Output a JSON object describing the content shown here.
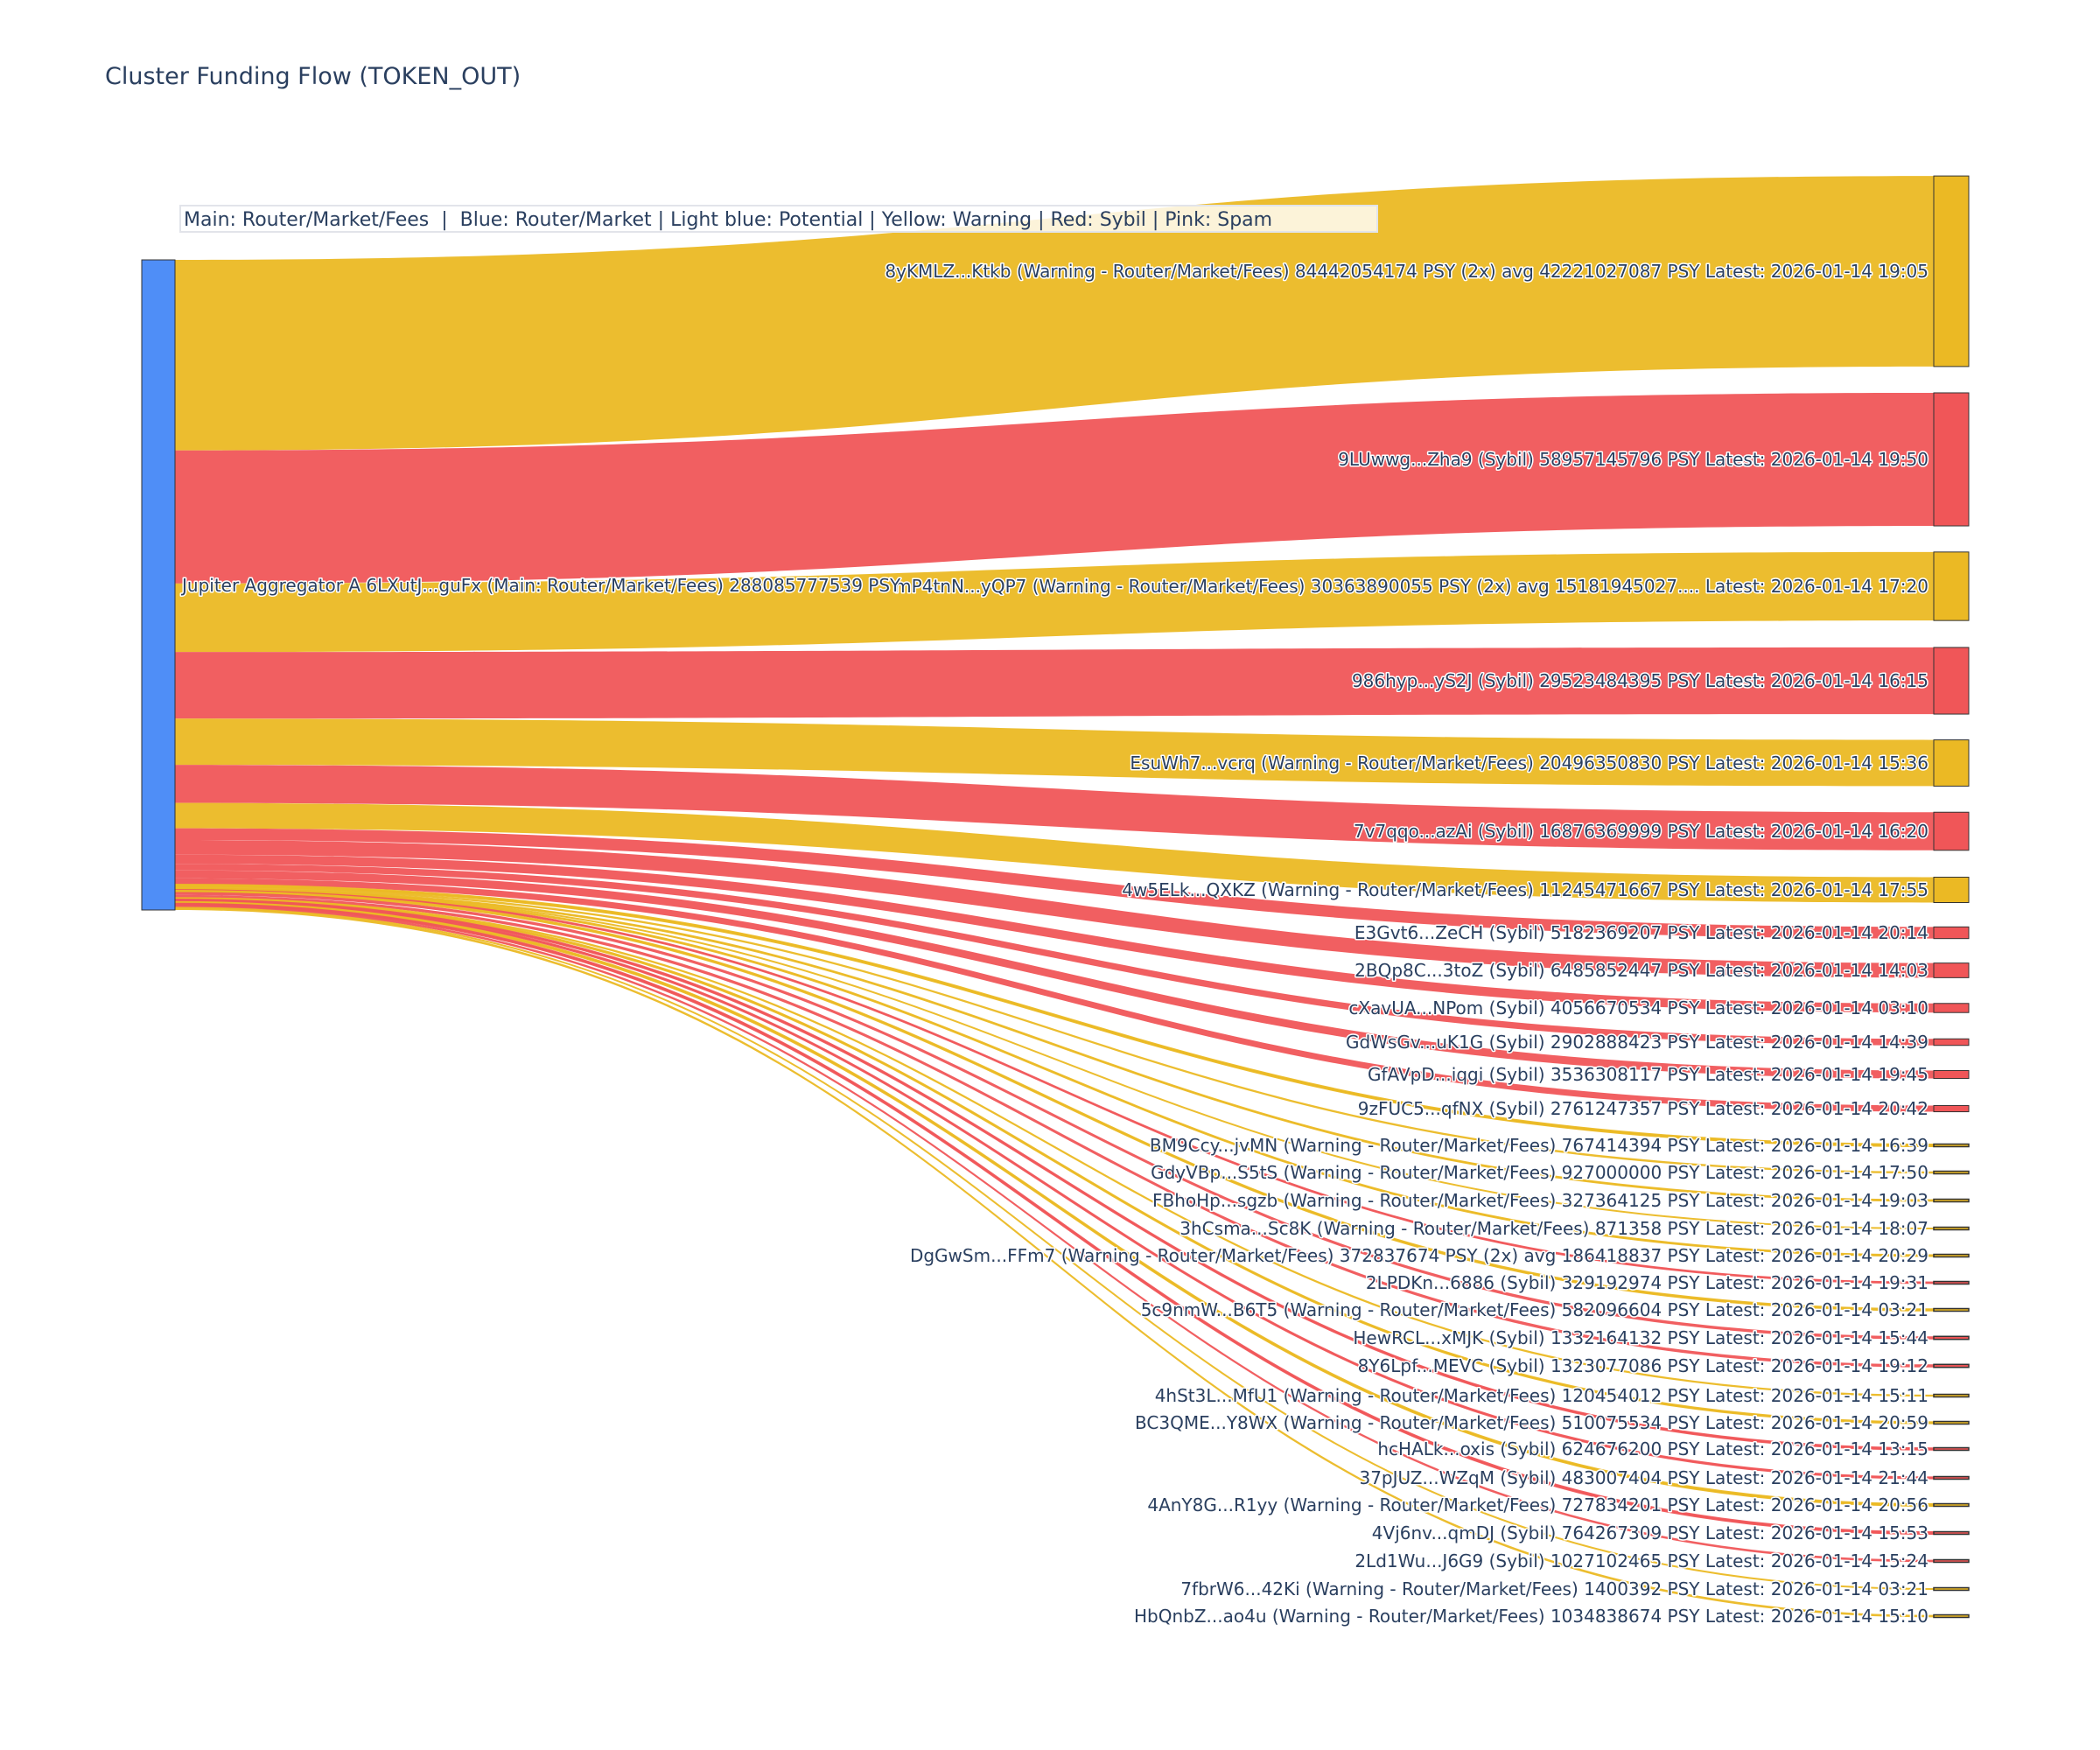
{
  "chart_data": {
    "type": "sankey",
    "title": "Cluster Funding Flow (TOKEN_OUT)",
    "annotation": "Main: Router/Market/Fees  |  Blue: Router/Market | Light blue: Potential | Yellow: Warning | Red: Sybil | Pink: Spam",
    "colors": {
      "Main": "#4f8ef7",
      "Warning": "#ebb924",
      "Sybil": "#f05658",
      "node_outline": "#333333"
    },
    "source": {
      "label": "Jupiter Aggregator A 6LXutJ...guFx (Main: Router/Market/Fees) 288085777539 PSY",
      "category": "Main",
      "value": 288085777539
    },
    "targets": [
      {
        "label": "8yKMLZ...Ktkb (Warning - Router/Market/Fees) 84442054174 PSY (2x) avg 42221027087 PSY Latest: 2026-01-14 19:05",
        "category": "Warning",
        "value": 84442054174
      },
      {
        "label": "9LUwwg...Zha9 (Sybil) 58957145796 PSY Latest: 2026-01-14 19:50",
        "category": "Sybil",
        "value": 58957145796
      },
      {
        "label": "mP4tnN...yQP7 (Warning - Router/Market/Fees) 30363890055 PSY (2x) avg 15181945027.... Latest: 2026-01-14 17:20",
        "category": "Warning",
        "value": 30363890055
      },
      {
        "label": "986hyp...yS2J (Sybil) 29523484395 PSY Latest: 2026-01-14 16:15",
        "category": "Sybil",
        "value": 29523484395
      },
      {
        "label": "EsuWh7...vcrq (Warning - Router/Market/Fees) 20496350830 PSY Latest: 2026-01-14 15:36",
        "category": "Warning",
        "value": 20496350830
      },
      {
        "label": "7v7qqo...azAi (Sybil) 16876369999 PSY Latest: 2026-01-14 16:20",
        "category": "Sybil",
        "value": 16876369999
      },
      {
        "label": "4w5ELk...QXKZ (Warning - Router/Market/Fees) 11245471667 PSY Latest: 2026-01-14 17:55",
        "category": "Warning",
        "value": 11245471667
      },
      {
        "label": "E3Gvt6...ZeCH (Sybil) 5182369207 PSY Latest: 2026-01-14 20:14",
        "category": "Sybil",
        "value": 5182369207
      },
      {
        "label": "2BQp8C...3toZ (Sybil) 6485852447 PSY Latest: 2026-01-14 14:03",
        "category": "Sybil",
        "value": 6485852447
      },
      {
        "label": "cXavUA...NPom (Sybil) 4056670534 PSY Latest: 2026-01-14 03:10",
        "category": "Sybil",
        "value": 4056670534
      },
      {
        "label": "GdWsGv...uK1G (Sybil) 2902888423 PSY Latest: 2026-01-14 14:39",
        "category": "Sybil",
        "value": 2902888423
      },
      {
        "label": "GfAVpD...iqgi (Sybil) 3536308117 PSY Latest: 2026-01-14 19:45",
        "category": "Sybil",
        "value": 3536308117
      },
      {
        "label": "9zFUC5...qfNX (Sybil) 2761247357 PSY Latest: 2026-01-14 20:42",
        "category": "Sybil",
        "value": 2761247357
      },
      {
        "label": "BM9Ccy...jvMN (Warning - Router/Market/Fees) 767414394 PSY Latest: 2026-01-14 16:39",
        "category": "Warning",
        "value": 767414394
      },
      {
        "label": "GdyVBp...S5tS (Warning - Router/Market/Fees) 927000000 PSY Latest: 2026-01-14 17:50",
        "category": "Warning",
        "value": 927000000
      },
      {
        "label": "FBhoHp...sgzb (Warning - Router/Market/Fees) 327364125 PSY Latest: 2026-01-14 19:03",
        "category": "Warning",
        "value": 327364125
      },
      {
        "label": "3hCsma...Sc8K (Warning - Router/Market/Fees) 871358 PSY Latest: 2026-01-14 18:07",
        "category": "Warning",
        "value": 871358
      },
      {
        "label": "DgGwSm...FFm7 (Warning - Router/Market/Fees) 372837674 PSY (2x) avg 186418837 PSY Latest: 2026-01-14 20:29",
        "category": "Warning",
        "value": 372837674
      },
      {
        "label": "2LPDKn...6886 (Sybil) 329192974 PSY Latest: 2026-01-14 19:31",
        "category": "Sybil",
        "value": 329192974
      },
      {
        "label": "5c9nmW...B6T5 (Warning - Router/Market/Fees) 582096604 PSY Latest: 2026-01-14 03:21",
        "category": "Warning",
        "value": 582096604
      },
      {
        "label": "HewRCL...xMJK (Sybil) 1332164132 PSY Latest: 2026-01-14 15:44",
        "category": "Sybil",
        "value": 1332164132
      },
      {
        "label": "8Y6Lpf...MEVC (Sybil) 1323077086 PSY Latest: 2026-01-14 19:12",
        "category": "Sybil",
        "value": 1323077086
      },
      {
        "label": "4hSt3L...MfU1 (Warning - Router/Market/Fees) 120454012 PSY Latest: 2026-01-14 15:11",
        "category": "Warning",
        "value": 120454012
      },
      {
        "label": "BC3QME...Y8WX (Warning - Router/Market/Fees) 510075534 PSY Latest: 2026-01-14 20:59",
        "category": "Warning",
        "value": 510075534
      },
      {
        "label": "hcHALk...oxis (Sybil) 624676200 PSY Latest: 2026-01-14 13:15",
        "category": "Sybil",
        "value": 624676200
      },
      {
        "label": "37pJUZ...WZqM (Sybil) 483007404 PSY Latest: 2026-01-14 21:44",
        "category": "Sybil",
        "value": 483007404
      },
      {
        "label": "4AnY8G...R1yy (Warning - Router/Market/Fees) 727834201 PSY Latest: 2026-01-14 20:56",
        "category": "Warning",
        "value": 727834201
      },
      {
        "label": "4Vj6nv...qmDJ (Sybil) 764267309 PSY Latest: 2026-01-14 15:53",
        "category": "Sybil",
        "value": 764267309
      },
      {
        "label": "2Ld1Wu...J6G9 (Sybil) 1027102465 PSY Latest: 2026-01-14 15:24",
        "category": "Sybil",
        "value": 1027102465
      },
      {
        "label": "7fbrW6...42Ki (Warning - Router/Market/Fees) 1400392 PSY Latest: 2026-01-14 03:21",
        "category": "Warning",
        "value": 1400392
      },
      {
        "label": "HbQnbZ...ao4u (Warning - Router/Market/Fees) 1034838674 PSY Latest: 2026-01-14 15:10",
        "category": "Warning",
        "value": 1034838674
      }
    ]
  }
}
